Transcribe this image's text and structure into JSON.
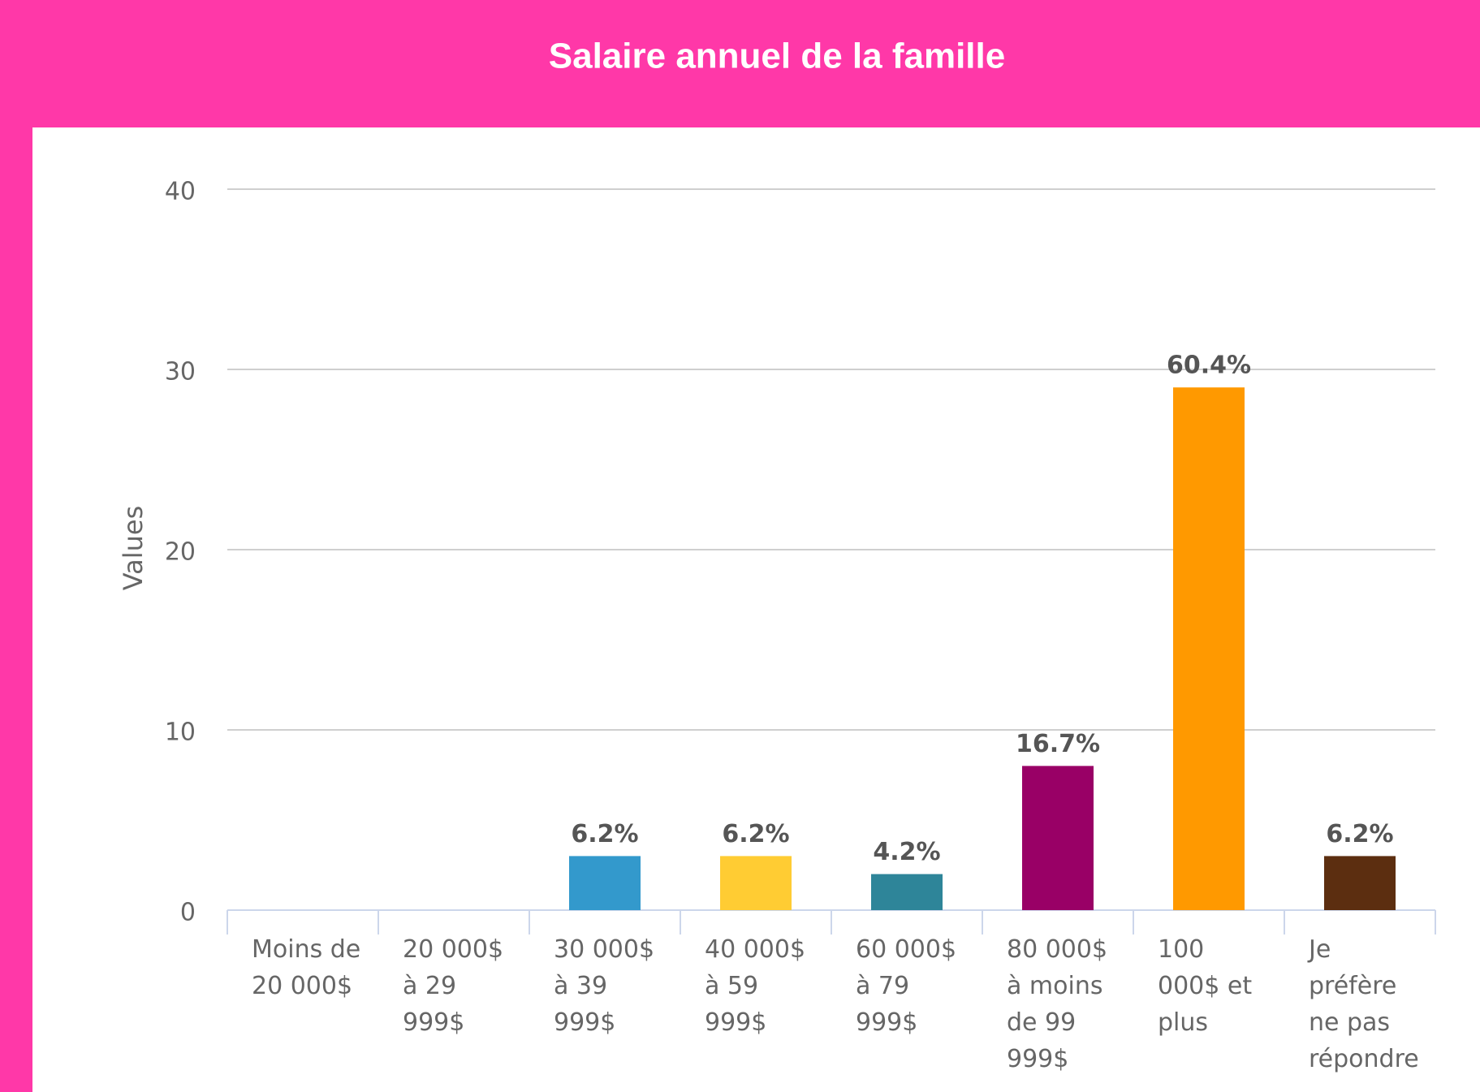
{
  "chart_data": {
    "type": "bar",
    "title": "Salaire annuel de la famille",
    "ylabel": "Values",
    "categories": [
      "Moins de 20 000$",
      "20 000$ à 29 999$",
      "30 000$ à 39 999$",
      "40 000$ à 59 999$",
      "60 000$ à 79 999$",
      "80 000$ à moins de 99 999$",
      "100 000$ et plus",
      "Je préfère ne pas répondre"
    ],
    "values": [
      0,
      0,
      3,
      3,
      2,
      8,
      29,
      3
    ],
    "value_labels": [
      null,
      null,
      "6.2%",
      "6.2%",
      "4.2%",
      "16.7%",
      "60.4%",
      "6.2%"
    ],
    "colors": [
      null,
      null,
      "#3399cc",
      "#ffcc33",
      "#2e8599",
      "#990066",
      "#ff9900",
      "#5c2e10"
    ],
    "ylim": [
      0,
      40
    ],
    "yticks": [
      0,
      10,
      20,
      30,
      40
    ],
    "grid": true
  }
}
